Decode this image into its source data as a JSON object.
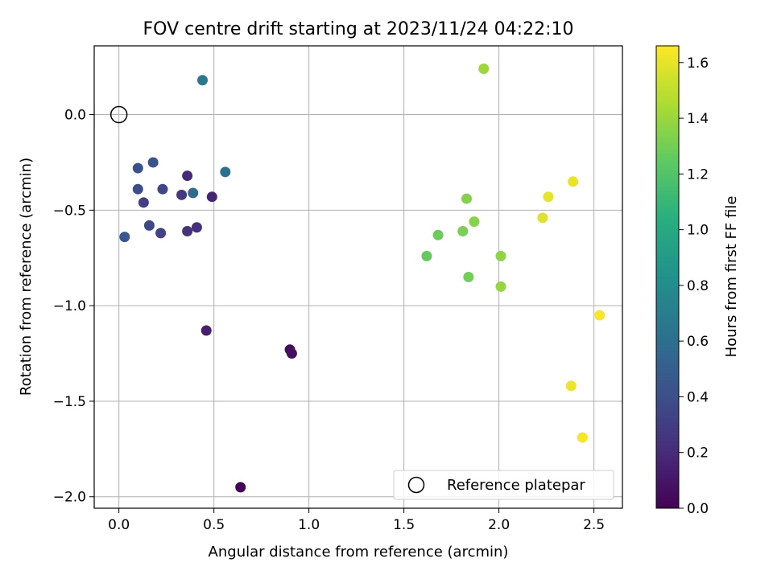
{
  "chart_data": {
    "type": "scatter",
    "title": "FOV centre drift starting at 2023/11/24 04:22:10",
    "xlabel": "Angular distance from reference (arcmin)",
    "ylabel": "Rotation from reference (arcmin)",
    "xlim": [
      -0.13,
      2.65
    ],
    "ylim": [
      -2.06,
      0.36
    ],
    "xticks": [
      {
        "value": 0.0,
        "label": "0.0"
      },
      {
        "value": 0.5,
        "label": "0.5"
      },
      {
        "value": 1.0,
        "label": "1.0"
      },
      {
        "value": 1.5,
        "label": "1.5"
      },
      {
        "value": 2.0,
        "label": "2.0"
      },
      {
        "value": 2.5,
        "label": "2.5"
      }
    ],
    "yticks": [
      {
        "value": 0.0,
        "label": "0.0"
      },
      {
        "value": -0.5,
        "label": "−0.5"
      },
      {
        "value": -1.0,
        "label": "−1.0"
      },
      {
        "value": -1.5,
        "label": "−1.5"
      },
      {
        "value": -2.0,
        "label": "−2.0"
      }
    ],
    "grid": true,
    "colormap": "viridis",
    "colorbar": {
      "label": "Hours from first FF file",
      "range": [
        0.0,
        1.66
      ],
      "ticks": [
        {
          "value": 0.0,
          "label": "0.0"
        },
        {
          "value": 0.2,
          "label": "0.2"
        },
        {
          "value": 0.4,
          "label": "0.4"
        },
        {
          "value": 0.6,
          "label": "0.6"
        },
        {
          "value": 0.8,
          "label": "0.8"
        },
        {
          "value": 1.0,
          "label": "1.0"
        },
        {
          "value": 1.2,
          "label": "1.2"
        },
        {
          "value": 1.4,
          "label": "1.4"
        },
        {
          "value": 1.6,
          "label": "1.6"
        }
      ]
    },
    "reference_point": {
      "x": 0.0,
      "y": 0.0,
      "label": "Reference platepar"
    },
    "legend_placement": "lower-right",
    "points": [
      {
        "x": 0.64,
        "y": -1.95,
        "hours": 0.02
      },
      {
        "x": 0.9,
        "y": -1.23,
        "hours": 0.05
      },
      {
        "x": 0.91,
        "y": -1.25,
        "hours": 0.07
      },
      {
        "x": 0.46,
        "y": -1.13,
        "hours": 0.14
      },
      {
        "x": 0.49,
        "y": -0.43,
        "hours": 0.17
      },
      {
        "x": 0.36,
        "y": -0.32,
        "hours": 0.2
      },
      {
        "x": 0.41,
        "y": -0.59,
        "hours": 0.22
      },
      {
        "x": 0.36,
        "y": -0.61,
        "hours": 0.24
      },
      {
        "x": 0.33,
        "y": -0.42,
        "hours": 0.28
      },
      {
        "x": 0.13,
        "y": -0.46,
        "hours": 0.31
      },
      {
        "x": 0.22,
        "y": -0.62,
        "hours": 0.33
      },
      {
        "x": 0.23,
        "y": -0.39,
        "hours": 0.35
      },
      {
        "x": 0.16,
        "y": -0.58,
        "hours": 0.37
      },
      {
        "x": 0.1,
        "y": -0.39,
        "hours": 0.39
      },
      {
        "x": 0.1,
        "y": -0.28,
        "hours": 0.41
      },
      {
        "x": 0.18,
        "y": -0.25,
        "hours": 0.43
      },
      {
        "x": 0.03,
        "y": -0.64,
        "hours": 0.45
      },
      {
        "x": 0.39,
        "y": -0.41,
        "hours": 0.58
      },
      {
        "x": 0.56,
        "y": -0.3,
        "hours": 0.62
      },
      {
        "x": 0.44,
        "y": 0.18,
        "hours": 0.66
      },
      {
        "x": 1.62,
        "y": -0.74,
        "hours": 1.26
      },
      {
        "x": 1.68,
        "y": -0.63,
        "hours": 1.28
      },
      {
        "x": 1.84,
        "y": -0.85,
        "hours": 1.3
      },
      {
        "x": 1.81,
        "y": -0.61,
        "hours": 1.32
      },
      {
        "x": 1.83,
        "y": -0.44,
        "hours": 1.34
      },
      {
        "x": 1.87,
        "y": -0.56,
        "hours": 1.35
      },
      {
        "x": 2.01,
        "y": -0.74,
        "hours": 1.37
      },
      {
        "x": 2.01,
        "y": -0.9,
        "hours": 1.39
      },
      {
        "x": 1.92,
        "y": 0.24,
        "hours": 1.41
      },
      {
        "x": 2.23,
        "y": -0.54,
        "hours": 1.58
      },
      {
        "x": 2.26,
        "y": -0.43,
        "hours": 1.6
      },
      {
        "x": 2.39,
        "y": -0.35,
        "hours": 1.61
      },
      {
        "x": 2.38,
        "y": -1.42,
        "hours": 1.62
      },
      {
        "x": 2.44,
        "y": -1.69,
        "hours": 1.64
      },
      {
        "x": 2.53,
        "y": -1.05,
        "hours": 1.65
      }
    ]
  }
}
